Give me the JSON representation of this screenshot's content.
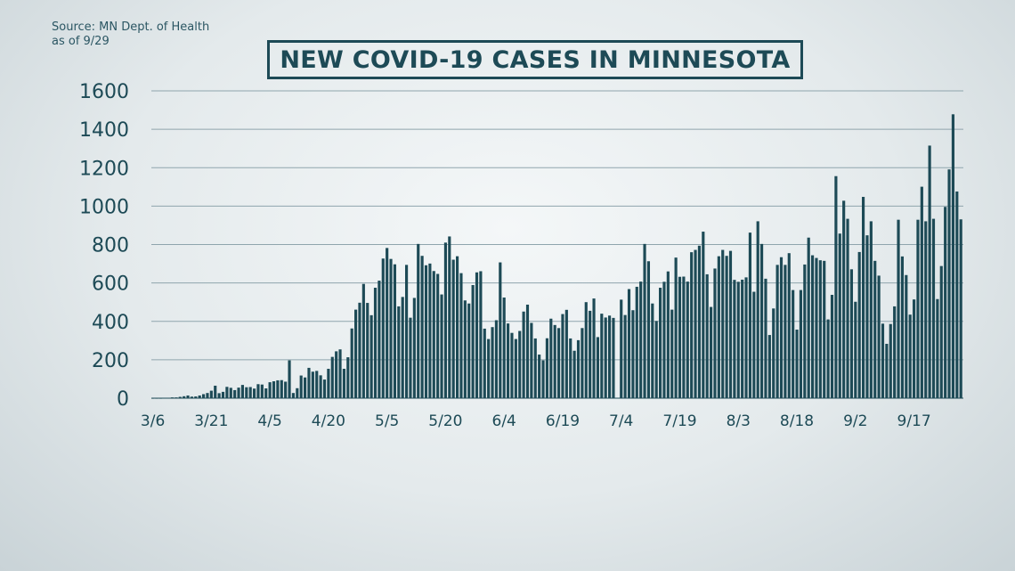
{
  "source_note": [
    "Source: MN Dept. of Health",
    "as of 9/29"
  ],
  "chart_data": {
    "type": "bar",
    "title": "NEW COVID-19 CASES IN MINNESOTA",
    "xlabel": "",
    "ylabel": "",
    "ylim": [
      0,
      1600
    ],
    "yticks": [
      0,
      200,
      400,
      600,
      800,
      1000,
      1200,
      1400,
      1600
    ],
    "xtick_labels": [
      "3/6",
      "3/21",
      "4/5",
      "4/20",
      "5/5",
      "5/20",
      "6/4",
      "6/19",
      "7/4",
      "7/19",
      "8/3",
      "8/18",
      "9/2",
      "9/17"
    ],
    "grid": true,
    "bar_color": "#1d4a56",
    "start_date": "3/6",
    "values": [
      1,
      1,
      1,
      2,
      2,
      4,
      4,
      7,
      10,
      14,
      8,
      9,
      14,
      21,
      27,
      39,
      65,
      26,
      33,
      59,
      54,
      42,
      55,
      69,
      57,
      58,
      50,
      73,
      71,
      51,
      83,
      88,
      93,
      94,
      86,
      197,
      27,
      52,
      118,
      108,
      158,
      138,
      142,
      119,
      97,
      153,
      215,
      244,
      254,
      153,
      213,
      363,
      461,
      497,
      595,
      496,
      432,
      575,
      612,
      727,
      782,
      725,
      697,
      478,
      527,
      694,
      419,
      522,
      803,
      741,
      692,
      701,
      662,
      647,
      540,
      810,
      842,
      721,
      739,
      651,
      509,
      493,
      589,
      655,
      661,
      362,
      308,
      370,
      406,
      707,
      524,
      389,
      340,
      308,
      350,
      451,
      487,
      392,
      311,
      227,
      197,
      312,
      414,
      381,
      365,
      438,
      460,
      311,
      247,
      302,
      365,
      500,
      455,
      519,
      318,
      440,
      420,
      430,
      418,
      0,
      513,
      433,
      568,
      458,
      580,
      607,
      803,
      713,
      493,
      402,
      575,
      606,
      660,
      461,
      732,
      632,
      633,
      607,
      760,
      772,
      794,
      867,
      645,
      475,
      675,
      739,
      772,
      741,
      767,
      616,
      606,
      617,
      629,
      862,
      554,
      921,
      803,
      622,
      329,
      467,
      694,
      734,
      694,
      755,
      563,
      357,
      563,
      696,
      836,
      744,
      730,
      718,
      715,
      410,
      538,
      1156,
      857,
      1028,
      934,
      671,
      502,
      761,
      1048,
      848,
      921,
      715,
      638,
      388,
      283,
      386,
      478,
      929,
      738,
      641,
      435,
      514,
      929,
      1101,
      921,
      1315,
      934,
      516,
      688,
      996,
      1191,
      1478,
      1076,
      931
    ]
  }
}
